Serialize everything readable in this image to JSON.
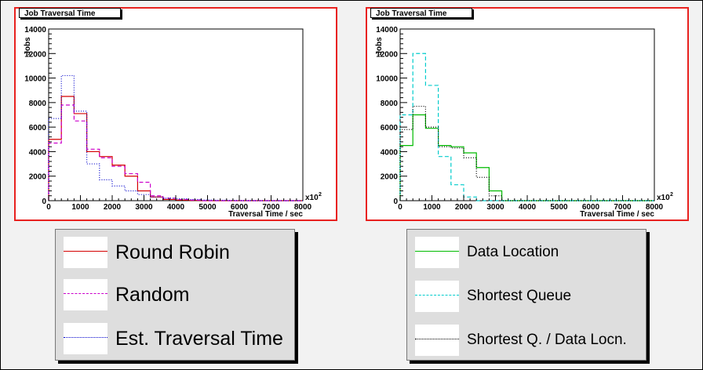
{
  "colors": {
    "panel_border": "#e8211f",
    "legend_bg": "#dedede"
  },
  "charts": [
    {
      "title": "Job Traversal Time",
      "chart_data": {
        "type": "line",
        "title": "Job Traversal Time",
        "xlabel": "Traversal Time / sec",
        "ylabel": "Jobs",
        "x_multiplier_label": "x10",
        "x_multiplier_exponent": "2",
        "xlim": [
          0,
          8000
        ],
        "ylim": [
          0,
          14000
        ],
        "x_ticks": [
          0,
          1000,
          2000,
          3000,
          4000,
          5000,
          6000,
          7000,
          8000
        ],
        "y_ticks": [
          0,
          2000,
          4000,
          6000,
          8000,
          10000,
          12000,
          14000
        ],
        "x_tick_labels": [
          "0",
          "1000",
          "2000",
          "3000",
          "4000",
          "5000",
          "6000",
          "7000",
          "8000"
        ],
        "y_tick_labels": [
          "0",
          "2000",
          "4000",
          "6000",
          "8000",
          "10000",
          "12000",
          "14000"
        ],
        "bin_edges": [
          0,
          400,
          800,
          1200,
          1600,
          2000,
          2400,
          2800,
          3200,
          3600,
          4000,
          4400,
          4800,
          5200,
          5600,
          6000,
          6400,
          6800,
          7200,
          7600,
          8000
        ],
        "series": [
          {
            "name": "Round Robin",
            "color": "#d40000",
            "dash": "solid",
            "values": [
              5000,
              8500,
              7100,
              4000,
              3600,
              2900,
              2000,
              800,
              300,
              100,
              50,
              20,
              0,
              0,
              0,
              0,
              0,
              0,
              0,
              0
            ]
          },
          {
            "name": "Random",
            "color": "#cc00cc",
            "dash": "dashed",
            "values": [
              4700,
              7800,
              6500,
              4200,
              3500,
              2800,
              2200,
              1500,
              400,
              200,
              100,
              50,
              0,
              0,
              0,
              0,
              0,
              0,
              0,
              0
            ]
          },
          {
            "name": "Est. Traversal Time",
            "color": "#0000cc",
            "dash": "dotted",
            "values": [
              6700,
              10200,
              7300,
              3000,
              1700,
              1200,
              800,
              500,
              300,
              200,
              150,
              100,
              50,
              30,
              20,
              10,
              0,
              0,
              0,
              0
            ]
          }
        ]
      }
    },
    {
      "title": "Job Traversal Time",
      "chart_data": {
        "type": "line",
        "title": "Job Traversal Time",
        "xlabel": "Traversal Time / sec",
        "ylabel": "Jobs",
        "x_multiplier_label": "x10",
        "x_multiplier_exponent": "2",
        "xlim": [
          0,
          8000
        ],
        "ylim": [
          0,
          14000
        ],
        "x_ticks": [
          0,
          1000,
          2000,
          3000,
          4000,
          5000,
          6000,
          7000,
          8000
        ],
        "y_ticks": [
          0,
          2000,
          4000,
          6000,
          8000,
          10000,
          12000,
          14000
        ],
        "x_tick_labels": [
          "0",
          "1000",
          "2000",
          "3000",
          "4000",
          "5000",
          "6000",
          "7000",
          "8000"
        ],
        "y_tick_labels": [
          "0",
          "2000",
          "4000",
          "6000",
          "8000",
          "10000",
          "12000",
          "14000"
        ],
        "bin_edges": [
          0,
          400,
          800,
          1200,
          1600,
          2000,
          2400,
          2800,
          3200,
          3600,
          4000,
          4400,
          4800,
          5200,
          5600,
          6000,
          6400,
          6800,
          7200,
          7600,
          8000
        ],
        "series": [
          {
            "name": "Data Location",
            "color": "#00bb00",
            "dash": "solid",
            "values": [
              4500,
              7000,
              5900,
              4500,
              4400,
              3900,
              2700,
              800,
              0,
              0,
              0,
              0,
              0,
              0,
              0,
              0,
              0,
              0,
              0,
              0
            ]
          },
          {
            "name": "Shortest Queue",
            "color": "#00cccc",
            "dash": "dashed",
            "values": [
              7000,
              12000,
              9400,
              3600,
              1300,
              300,
              0,
              0,
              0,
              0,
              0,
              0,
              0,
              0,
              0,
              0,
              0,
              0,
              0,
              0
            ]
          },
          {
            "name": "Shortest Q. / Data Locn.",
            "color": "#000000",
            "dash": "dotted",
            "values": [
              5800,
              7700,
              6000,
              4400,
              4300,
              3500,
              1900,
              400,
              0,
              0,
              0,
              0,
              0,
              0,
              0,
              0,
              0,
              0,
              0,
              0
            ]
          }
        ]
      }
    }
  ],
  "legends": [
    {
      "items": [
        {
          "label": "Round Robin",
          "color": "#d40000",
          "dash": "solid"
        },
        {
          "label": "Random",
          "color": "#cc00cc",
          "dash": "dashed"
        },
        {
          "label": "Est. Traversal Time",
          "color": "#0000cc",
          "dash": "dotted"
        }
      ]
    },
    {
      "items": [
        {
          "label": "Data Location",
          "color": "#00bb00",
          "dash": "solid"
        },
        {
          "label": "Shortest Queue",
          "color": "#00cccc",
          "dash": "dashed"
        },
        {
          "label": "Shortest Q. / Data Locn.",
          "color": "#000000",
          "dash": "dotted"
        }
      ]
    }
  ]
}
